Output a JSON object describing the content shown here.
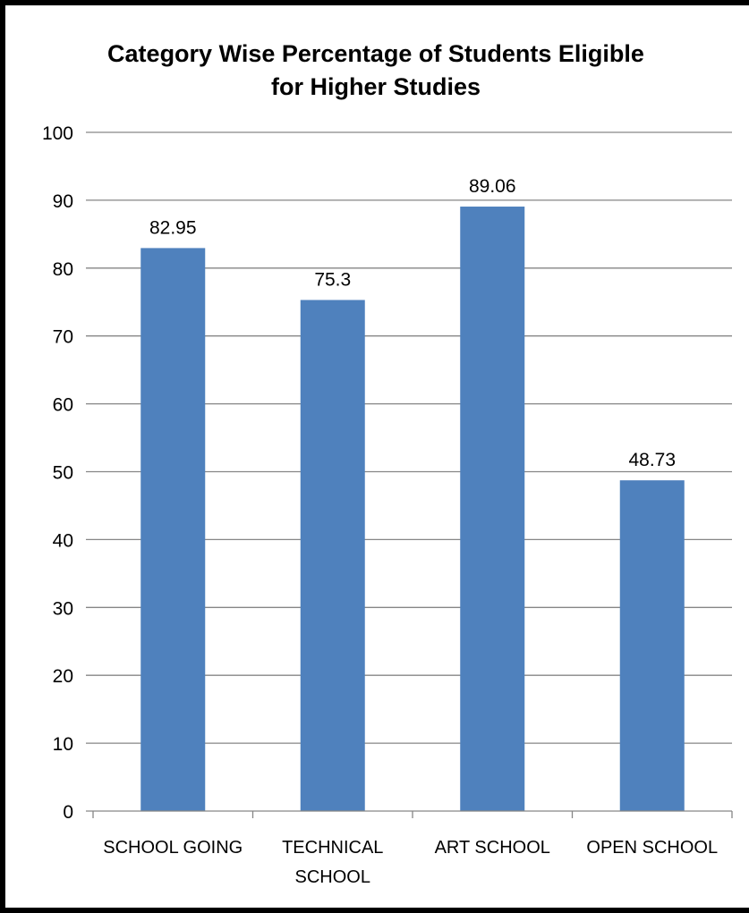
{
  "chart_data": {
    "type": "bar",
    "title_lines": [
      "Category Wise Percentage of Students Eligible",
      "for Higher Studies"
    ],
    "categories": [
      [
        "SCHOOL GOING"
      ],
      [
        "TECHNICAL",
        "SCHOOL"
      ],
      [
        "ART SCHOOL"
      ],
      [
        "OPEN SCHOOL"
      ]
    ],
    "values": [
      82.95,
      75.3,
      89.06,
      48.73
    ],
    "value_labels": [
      "82.95",
      "75.3",
      "89.06",
      "48.73"
    ],
    "y_ticks": [
      "0",
      "10",
      "20",
      "30",
      "40",
      "50",
      "60",
      "70",
      "80",
      "90",
      "100"
    ],
    "ylim": [
      0,
      100
    ],
    "grid": true,
    "legend": "none",
    "bar_color": "#4F81BD",
    "gridline_color": "#868686"
  }
}
